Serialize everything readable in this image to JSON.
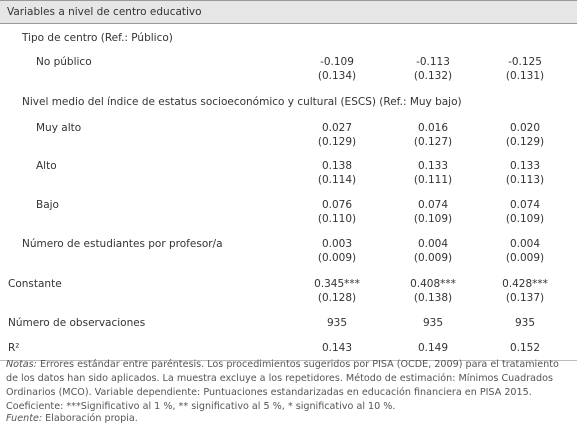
{
  "header": {
    "title": "Variables a nivel de centro educativo"
  },
  "table": {
    "rows": [
      {
        "label": "Tipo de centro (Ref.: Público)"
      },
      {
        "label": "No público",
        "cells": [
          [
            "-0.109",
            "(0.134)"
          ],
          [
            "-0.113",
            "(0.132)"
          ],
          [
            "-0.125",
            "(0.131)"
          ]
        ]
      },
      {
        "label": "Nivel medio del índice de estatus socioeconómico y cultural (ESCS) (Ref.: Muy bajo)"
      },
      {
        "label": "Muy alto",
        "cells": [
          [
            "0.027",
            "(0.129)"
          ],
          [
            "0.016",
            "(0.127)"
          ],
          [
            "0.020",
            "(0.129)"
          ]
        ]
      },
      {
        "label": "Alto",
        "cells": [
          [
            "0.138",
            "(0.114)"
          ],
          [
            "0.133",
            "(0.111)"
          ],
          [
            "0.133",
            "(0.113)"
          ]
        ]
      },
      {
        "label": "Bajo",
        "cells": [
          [
            "0.076",
            "(0.110)"
          ],
          [
            "0.074",
            "(0.109)"
          ],
          [
            "0.074",
            "(0.109)"
          ]
        ]
      },
      {
        "label": "Número de estudiantes por profesor/a",
        "cells": [
          [
            "0.003",
            "(0.009)"
          ],
          [
            "0.004",
            "(0.009)"
          ],
          [
            "0.004",
            "(0.009)"
          ]
        ]
      },
      {
        "label": "Constante",
        "cells": [
          [
            "0.345***",
            "(0.128)"
          ],
          [
            "0.408***",
            "(0.138)"
          ],
          [
            "0.428***",
            "(0.137)"
          ]
        ]
      },
      {
        "label": "Número de observaciones",
        "cells": [
          [
            "935"
          ],
          [
            "935"
          ],
          [
            "935"
          ]
        ]
      },
      {
        "label": "R²",
        "cells": [
          [
            "0.143"
          ],
          [
            "0.149"
          ],
          [
            "0.152"
          ]
        ]
      }
    ]
  },
  "notes": {
    "label": "Notas:",
    "text": "Errores estándar entre paréntesis. Los procedimientos sugeridos por PISA (OCDE, 2009) para el tratamiento de los datos han sido aplicados. La muestra excluye a los repetidores. Método de estimación: Mínimos Cuadrados Ordinarios (MCO). Variable dependiente: Puntuaciones estandarizadas en educación financiera en PISA 2015. Coeficiente: ***Significativo al 1 %, ** significativo al 5 %, * significativo al 10 %."
  },
  "source": {
    "label": "Fuente:",
    "text": "Elaboración propia."
  }
}
